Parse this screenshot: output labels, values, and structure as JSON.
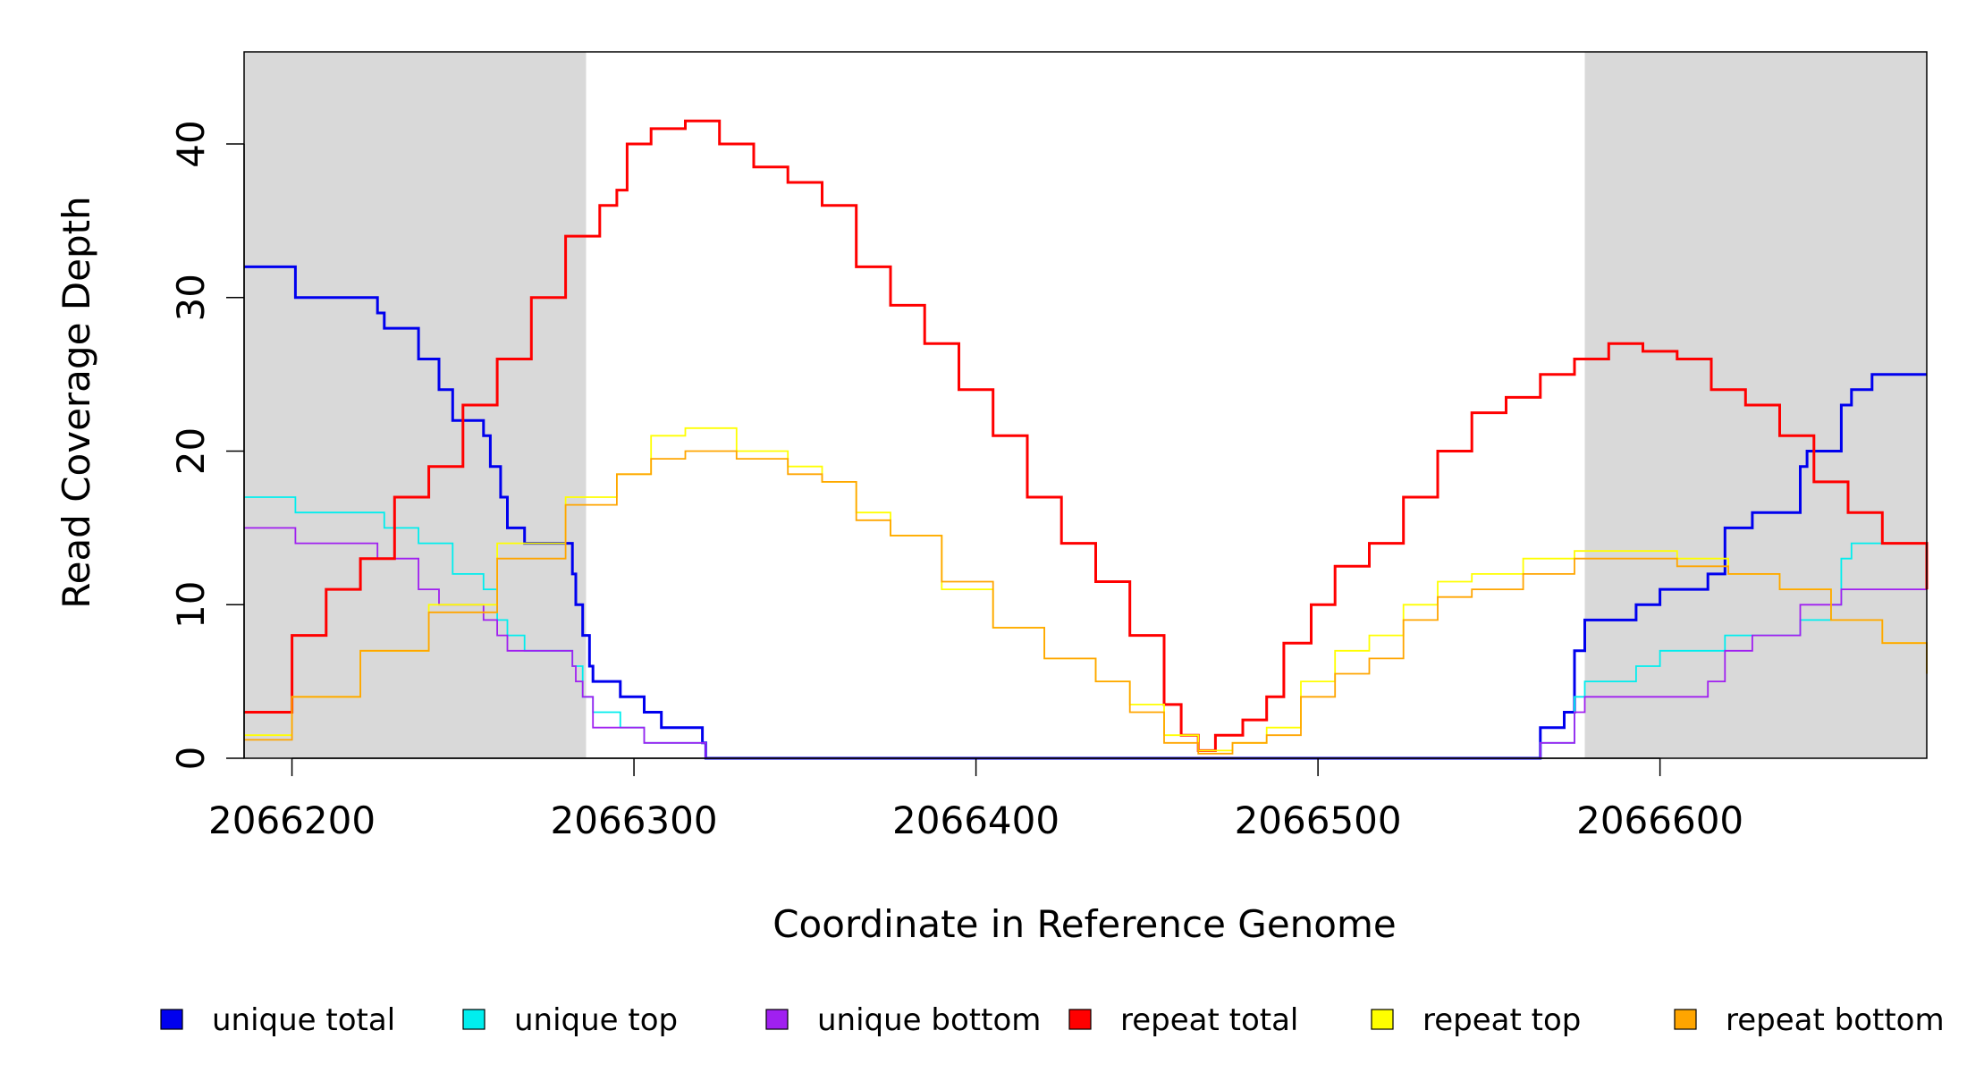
{
  "chart_data": {
    "type": "line",
    "step": true,
    "title": "",
    "xlabel": "Coordinate in Reference Genome",
    "ylabel": "Read Coverage Depth",
    "xlim": [
      2066186,
      2066678
    ],
    "ylim": [
      0,
      46
    ],
    "x_ticks": [
      2066200,
      2066300,
      2066400,
      2066500,
      2066600
    ],
    "y_ticks": [
      0,
      10,
      20,
      30,
      40
    ],
    "grid": false,
    "shaded_regions": [
      {
        "x0": 2066186,
        "x1": 2066286,
        "color": "#d9d9d9"
      },
      {
        "x0": 2066578,
        "x1": 2066678,
        "color": "#d9d9d9"
      }
    ],
    "legend_position": "bottom",
    "series": [
      {
        "name": "unique total",
        "color": "#0000ee",
        "points": [
          [
            2066186,
            32
          ],
          [
            2066201,
            30
          ],
          [
            2066225,
            29
          ],
          [
            2066227,
            28
          ],
          [
            2066237,
            26
          ],
          [
            2066243,
            24
          ],
          [
            2066247,
            22
          ],
          [
            2066256,
            21
          ],
          [
            2066258,
            19
          ],
          [
            2066261,
            17
          ],
          [
            2066263,
            15
          ],
          [
            2066268,
            14
          ],
          [
            2066282,
            12
          ],
          [
            2066283,
            10
          ],
          [
            2066285,
            8
          ],
          [
            2066287,
            6
          ],
          [
            2066288,
            5
          ],
          [
            2066296,
            4
          ],
          [
            2066303,
            3
          ],
          [
            2066308,
            2
          ],
          [
            2066320,
            1
          ],
          [
            2066321,
            0
          ],
          [
            2066565,
            2
          ],
          [
            2066572,
            3
          ],
          [
            2066575,
            7
          ],
          [
            2066578,
            9
          ],
          [
            2066593,
            10
          ],
          [
            2066600,
            11
          ],
          [
            2066614,
            12
          ],
          [
            2066619,
            15
          ],
          [
            2066627,
            16
          ],
          [
            2066641,
            19
          ],
          [
            2066643,
            20
          ],
          [
            2066653,
            23
          ],
          [
            2066656,
            24
          ],
          [
            2066662,
            25
          ],
          [
            2066678,
            25
          ]
        ]
      },
      {
        "name": "unique top",
        "color": "#00eeee",
        "points": [
          [
            2066186,
            17
          ],
          [
            2066201,
            16
          ],
          [
            2066227,
            15
          ],
          [
            2066237,
            14
          ],
          [
            2066247,
            12
          ],
          [
            2066256,
            11
          ],
          [
            2066260,
            9
          ],
          [
            2066263,
            8
          ],
          [
            2066268,
            7
          ],
          [
            2066282,
            6
          ],
          [
            2066285,
            4
          ],
          [
            2066288,
            3
          ],
          [
            2066296,
            2
          ],
          [
            2066303,
            1
          ],
          [
            2066321,
            0
          ],
          [
            2066565,
            1
          ],
          [
            2066575,
            4
          ],
          [
            2066578,
            5
          ],
          [
            2066593,
            6
          ],
          [
            2066600,
            7
          ],
          [
            2066619,
            8
          ],
          [
            2066627,
            8
          ],
          [
            2066641,
            9
          ],
          [
            2066650,
            10
          ],
          [
            2066653,
            13
          ],
          [
            2066656,
            14
          ],
          [
            2066678,
            14
          ]
        ]
      },
      {
        "name": "unique bottom",
        "color": "#a020f0",
        "points": [
          [
            2066186,
            15
          ],
          [
            2066201,
            14
          ],
          [
            2066225,
            13
          ],
          [
            2066237,
            11
          ],
          [
            2066243,
            10
          ],
          [
            2066256,
            9
          ],
          [
            2066260,
            8
          ],
          [
            2066263,
            7
          ],
          [
            2066282,
            6
          ],
          [
            2066283,
            5
          ],
          [
            2066285,
            4
          ],
          [
            2066288,
            2
          ],
          [
            2066303,
            1
          ],
          [
            2066321,
            0
          ],
          [
            2066565,
            1
          ],
          [
            2066575,
            3
          ],
          [
            2066578,
            4
          ],
          [
            2066614,
            5
          ],
          [
            2066619,
            7
          ],
          [
            2066627,
            8
          ],
          [
            2066641,
            10
          ],
          [
            2066653,
            11
          ],
          [
            2066678,
            11
          ]
        ]
      },
      {
        "name": "repeat total",
        "color": "#ff0000",
        "points": [
          [
            2066186,
            3
          ],
          [
            2066200,
            8
          ],
          [
            2066210,
            11
          ],
          [
            2066220,
            13
          ],
          [
            2066230,
            17
          ],
          [
            2066240,
            19
          ],
          [
            2066250,
            23
          ],
          [
            2066260,
            26
          ],
          [
            2066270,
            30
          ],
          [
            2066280,
            34
          ],
          [
            2066290,
            36
          ],
          [
            2066295,
            37
          ],
          [
            2066298,
            40
          ],
          [
            2066305,
            41
          ],
          [
            2066315,
            41.5
          ],
          [
            2066325,
            40
          ],
          [
            2066335,
            38.5
          ],
          [
            2066345,
            37.5
          ],
          [
            2066355,
            36
          ],
          [
            2066365,
            32
          ],
          [
            2066375,
            29.5
          ],
          [
            2066385,
            27
          ],
          [
            2066395,
            24
          ],
          [
            2066405,
            21
          ],
          [
            2066415,
            17
          ],
          [
            2066425,
            14
          ],
          [
            2066435,
            11.5
          ],
          [
            2066445,
            8
          ],
          [
            2066455,
            3.5
          ],
          [
            2066460,
            1.5
          ],
          [
            2066465,
            0.5
          ],
          [
            2066470,
            1.5
          ],
          [
            2066478,
            2.5
          ],
          [
            2066485,
            4
          ],
          [
            2066490,
            7.5
          ],
          [
            2066498,
            10
          ],
          [
            2066505,
            12.5
          ],
          [
            2066515,
            14
          ],
          [
            2066525,
            17
          ],
          [
            2066535,
            20
          ],
          [
            2066545,
            22.5
          ],
          [
            2066555,
            23.5
          ],
          [
            2066565,
            25
          ],
          [
            2066575,
            26
          ],
          [
            2066585,
            27
          ],
          [
            2066595,
            26.5
          ],
          [
            2066605,
            26
          ],
          [
            2066615,
            24
          ],
          [
            2066625,
            23
          ],
          [
            2066635,
            21
          ],
          [
            2066645,
            18
          ],
          [
            2066655,
            16
          ],
          [
            2066665,
            14
          ],
          [
            2066678,
            11
          ]
        ]
      },
      {
        "name": "repeat top",
        "color": "#ffff00",
        "points": [
          [
            2066186,
            1.5
          ],
          [
            2066200,
            4
          ],
          [
            2066220,
            7
          ],
          [
            2066240,
            10
          ],
          [
            2066260,
            14
          ],
          [
            2066280,
            17
          ],
          [
            2066295,
            18.5
          ],
          [
            2066305,
            21
          ],
          [
            2066315,
            21.5
          ],
          [
            2066330,
            20
          ],
          [
            2066345,
            19
          ],
          [
            2066355,
            18
          ],
          [
            2066365,
            16
          ],
          [
            2066375,
            14.5
          ],
          [
            2066390,
            11
          ],
          [
            2066405,
            8.5
          ],
          [
            2066420,
            6.5
          ],
          [
            2066435,
            5
          ],
          [
            2066445,
            3.5
          ],
          [
            2066455,
            1.5
          ],
          [
            2066465,
            0.5
          ],
          [
            2066475,
            1
          ],
          [
            2066485,
            2
          ],
          [
            2066495,
            5
          ],
          [
            2066505,
            7
          ],
          [
            2066515,
            8
          ],
          [
            2066525,
            10
          ],
          [
            2066535,
            11.5
          ],
          [
            2066545,
            12
          ],
          [
            2066560,
            13
          ],
          [
            2066575,
            13.5
          ],
          [
            2066590,
            13.5
          ],
          [
            2066605,
            13
          ],
          [
            2066620,
            12
          ],
          [
            2066635,
            11
          ],
          [
            2066650,
            9
          ],
          [
            2066665,
            7.5
          ],
          [
            2066678,
            5.5
          ]
        ]
      },
      {
        "name": "repeat bottom",
        "color": "#ffa500",
        "points": [
          [
            2066186,
            1.2
          ],
          [
            2066200,
            4
          ],
          [
            2066220,
            7
          ],
          [
            2066240,
            9.5
          ],
          [
            2066260,
            13
          ],
          [
            2066280,
            16.5
          ],
          [
            2066295,
            18.5
          ],
          [
            2066305,
            19.5
          ],
          [
            2066315,
            20
          ],
          [
            2066330,
            19.5
          ],
          [
            2066345,
            18.5
          ],
          [
            2066355,
            18
          ],
          [
            2066365,
            15.5
          ],
          [
            2066375,
            14.5
          ],
          [
            2066390,
            11.5
          ],
          [
            2066405,
            8.5
          ],
          [
            2066420,
            6.5
          ],
          [
            2066435,
            5
          ],
          [
            2066445,
            3
          ],
          [
            2066455,
            1
          ],
          [
            2066465,
            0.3
          ],
          [
            2066475,
            1
          ],
          [
            2066485,
            1.5
          ],
          [
            2066495,
            4
          ],
          [
            2066505,
            5.5
          ],
          [
            2066515,
            6.5
          ],
          [
            2066525,
            9
          ],
          [
            2066535,
            10.5
          ],
          [
            2066545,
            11
          ],
          [
            2066560,
            12
          ],
          [
            2066575,
            13
          ],
          [
            2066590,
            13
          ],
          [
            2066605,
            12.5
          ],
          [
            2066620,
            12
          ],
          [
            2066635,
            11
          ],
          [
            2066650,
            9
          ],
          [
            2066665,
            7.5
          ],
          [
            2066678,
            5.5
          ]
        ]
      }
    ]
  }
}
